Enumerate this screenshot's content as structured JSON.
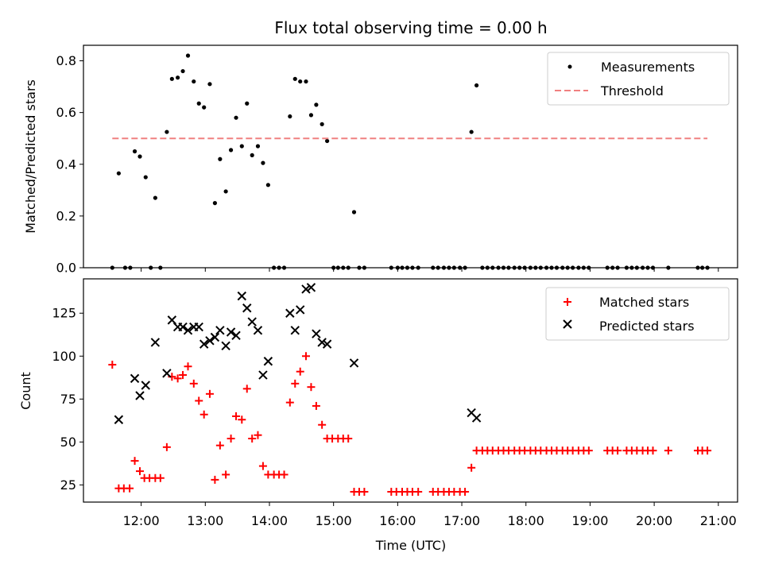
{
  "chart_data": [
    {
      "type": "scatter",
      "title": "Flux total observing time = 0.00 h",
      "xlabel": "",
      "ylabel": "Matched/Predicted stars",
      "xlim": [
        11.1,
        21.3
      ],
      "ylim": [
        0,
        0.86
      ],
      "yticks": [
        0.0,
        0.2,
        0.4,
        0.6,
        0.8
      ],
      "ytick_labels": [
        "0.0",
        "0.2",
        "0.4",
        "0.6",
        "0.8"
      ],
      "legend_position": "top-right",
      "series": [
        {
          "name": "Measurements",
          "marker": "dot",
          "color": "#000000",
          "points": [
            [
              11.55,
              0.0
            ],
            [
              11.65,
              0.365
            ],
            [
              11.75,
              0.0
            ],
            [
              11.83,
              0.0
            ],
            [
              11.9,
              0.45
            ],
            [
              11.98,
              0.43
            ],
            [
              12.07,
              0.35
            ],
            [
              12.15,
              0.0
            ],
            [
              12.22,
              0.27
            ],
            [
              12.3,
              0.0
            ],
            [
              12.4,
              0.525
            ],
            [
              12.48,
              0.73
            ],
            [
              12.57,
              0.735
            ],
            [
              12.65,
              0.76
            ],
            [
              12.73,
              0.82
            ],
            [
              12.82,
              0.72
            ],
            [
              12.9,
              0.635
            ],
            [
              12.98,
              0.62
            ],
            [
              13.07,
              0.71
            ],
            [
              13.15,
              0.25
            ],
            [
              13.23,
              0.42
            ],
            [
              13.32,
              0.295
            ],
            [
              13.4,
              0.455
            ],
            [
              13.48,
              0.58
            ],
            [
              13.57,
              0.47
            ],
            [
              13.65,
              0.635
            ],
            [
              13.73,
              0.435
            ],
            [
              13.82,
              0.47
            ],
            [
              13.9,
              0.405
            ],
            [
              13.98,
              0.32
            ],
            [
              14.07,
              0.0
            ],
            [
              14.15,
              0.0
            ],
            [
              14.23,
              0.0
            ],
            [
              14.32,
              0.585
            ],
            [
              14.4,
              0.73
            ],
            [
              14.48,
              0.72
            ],
            [
              14.57,
              0.72
            ],
            [
              14.65,
              0.59
            ],
            [
              14.73,
              0.63
            ],
            [
              14.82,
              0.555
            ],
            [
              14.9,
              0.49
            ],
            [
              15.0,
              0.0
            ],
            [
              15.07,
              0.0
            ],
            [
              15.15,
              0.0
            ],
            [
              15.23,
              0.0
            ],
            [
              15.32,
              0.215
            ],
            [
              15.4,
              0.0
            ],
            [
              15.48,
              0.0
            ],
            [
              15.9,
              0.0
            ],
            [
              16.0,
              0.0
            ],
            [
              16.07,
              0.0
            ],
            [
              16.15,
              0.0
            ],
            [
              16.23,
              0.0
            ],
            [
              16.32,
              0.0
            ],
            [
              16.55,
              0.0
            ],
            [
              16.63,
              0.0
            ],
            [
              16.72,
              0.0
            ],
            [
              16.8,
              0.0
            ],
            [
              16.88,
              0.0
            ],
            [
              16.97,
              0.0
            ],
            [
              17.05,
              0.0
            ],
            [
              17.15,
              0.525
            ],
            [
              17.23,
              0.705
            ],
            [
              17.32,
              0.0
            ],
            [
              17.4,
              0.0
            ],
            [
              17.48,
              0.0
            ],
            [
              17.57,
              0.0
            ],
            [
              17.65,
              0.0
            ],
            [
              17.73,
              0.0
            ],
            [
              17.82,
              0.0
            ],
            [
              17.9,
              0.0
            ],
            [
              17.98,
              0.0
            ],
            [
              18.07,
              0.0
            ],
            [
              18.15,
              0.0
            ],
            [
              18.23,
              0.0
            ],
            [
              18.32,
              0.0
            ],
            [
              18.4,
              0.0
            ],
            [
              18.48,
              0.0
            ],
            [
              18.57,
              0.0
            ],
            [
              18.65,
              0.0
            ],
            [
              18.73,
              0.0
            ],
            [
              18.82,
              0.0
            ],
            [
              18.9,
              0.0
            ],
            [
              18.98,
              0.0
            ],
            [
              19.27,
              0.0
            ],
            [
              19.35,
              0.0
            ],
            [
              19.43,
              0.0
            ],
            [
              19.57,
              0.0
            ],
            [
              19.65,
              0.0
            ],
            [
              19.73,
              0.0
            ],
            [
              19.82,
              0.0
            ],
            [
              19.9,
              0.0
            ],
            [
              19.98,
              0.0
            ],
            [
              20.22,
              0.0
            ],
            [
              20.68,
              0.0
            ],
            [
              20.75,
              0.0
            ],
            [
              20.83,
              0.0
            ]
          ]
        },
        {
          "name": "Threshold",
          "marker": "dashed-line",
          "color": "#f08080",
          "points": [
            [
              11.55,
              0.5
            ],
            [
              20.83,
              0.5
            ]
          ]
        }
      ]
    },
    {
      "type": "scatter",
      "title": "",
      "xlabel": "Time (UTC)",
      "ylabel": "Count",
      "xlim": [
        11.1,
        21.3
      ],
      "ylim": [
        15,
        145
      ],
      "yticks": [
        25,
        50,
        75,
        100,
        125
      ],
      "ytick_labels": [
        "25",
        "50",
        "75",
        "100",
        "125"
      ],
      "xticks": [
        12,
        13,
        14,
        15,
        16,
        17,
        18,
        19,
        20,
        21
      ],
      "xtick_labels": [
        "12:00",
        "13:00",
        "14:00",
        "15:00",
        "16:00",
        "17:00",
        "18:00",
        "19:00",
        "20:00",
        "21:00"
      ],
      "legend_position": "top-right",
      "series": [
        {
          "name": "Matched stars",
          "marker": "plus",
          "color": "#ff0000",
          "points": [
            [
              11.55,
              95
            ],
            [
              11.65,
              23
            ],
            [
              11.73,
              23
            ],
            [
              11.82,
              23
            ],
            [
              11.9,
              39
            ],
            [
              11.98,
              33
            ],
            [
              12.05,
              29
            ],
            [
              12.13,
              29
            ],
            [
              12.22,
              29
            ],
            [
              12.3,
              29
            ],
            [
              12.4,
              47
            ],
            [
              12.48,
              88
            ],
            [
              12.57,
              87
            ],
            [
              12.65,
              89
            ],
            [
              12.73,
              94
            ],
            [
              12.82,
              84
            ],
            [
              12.9,
              74
            ],
            [
              12.98,
              66
            ],
            [
              13.07,
              78
            ],
            [
              13.15,
              28
            ],
            [
              13.23,
              48
            ],
            [
              13.32,
              31
            ],
            [
              13.4,
              52
            ],
            [
              13.48,
              65
            ],
            [
              13.57,
              63
            ],
            [
              13.65,
              81
            ],
            [
              13.73,
              52
            ],
            [
              13.82,
              54
            ],
            [
              13.9,
              36
            ],
            [
              13.98,
              31
            ],
            [
              14.07,
              31
            ],
            [
              14.15,
              31
            ],
            [
              14.23,
              31
            ],
            [
              14.32,
              73
            ],
            [
              14.4,
              84
            ],
            [
              14.48,
              91
            ],
            [
              14.57,
              100
            ],
            [
              14.65,
              82
            ],
            [
              14.73,
              71
            ],
            [
              14.82,
              60
            ],
            [
              14.9,
              52
            ],
            [
              14.98,
              52
            ],
            [
              15.07,
              52
            ],
            [
              15.15,
              52
            ],
            [
              15.23,
              52
            ],
            [
              15.32,
              21
            ],
            [
              15.4,
              21
            ],
            [
              15.48,
              21
            ],
            [
              15.9,
              21
            ],
            [
              15.98,
              21
            ],
            [
              16.07,
              21
            ],
            [
              16.15,
              21
            ],
            [
              16.23,
              21
            ],
            [
              16.32,
              21
            ],
            [
              16.55,
              21
            ],
            [
              16.63,
              21
            ],
            [
              16.72,
              21
            ],
            [
              16.8,
              21
            ],
            [
              16.88,
              21
            ],
            [
              16.97,
              21
            ],
            [
              17.05,
              21
            ],
            [
              17.15,
              35
            ],
            [
              17.23,
              45
            ],
            [
              17.32,
              45
            ],
            [
              17.4,
              45
            ],
            [
              17.48,
              45
            ],
            [
              17.57,
              45
            ],
            [
              17.65,
              45
            ],
            [
              17.73,
              45
            ],
            [
              17.82,
              45
            ],
            [
              17.9,
              45
            ],
            [
              17.98,
              45
            ],
            [
              18.07,
              45
            ],
            [
              18.15,
              45
            ],
            [
              18.23,
              45
            ],
            [
              18.32,
              45
            ],
            [
              18.4,
              45
            ],
            [
              18.48,
              45
            ],
            [
              18.57,
              45
            ],
            [
              18.65,
              45
            ],
            [
              18.73,
              45
            ],
            [
              18.82,
              45
            ],
            [
              18.9,
              45
            ],
            [
              18.98,
              45
            ],
            [
              19.27,
              45
            ],
            [
              19.35,
              45
            ],
            [
              19.43,
              45
            ],
            [
              19.57,
              45
            ],
            [
              19.65,
              45
            ],
            [
              19.73,
              45
            ],
            [
              19.82,
              45
            ],
            [
              19.9,
              45
            ],
            [
              19.98,
              45
            ],
            [
              20.22,
              45
            ],
            [
              20.68,
              45
            ],
            [
              20.75,
              45
            ],
            [
              20.83,
              45
            ]
          ]
        },
        {
          "name": "Predicted stars",
          "marker": "x",
          "color": "#000000",
          "points": [
            [
              11.65,
              63
            ],
            [
              11.9,
              87
            ],
            [
              11.98,
              77
            ],
            [
              12.07,
              83
            ],
            [
              12.22,
              108
            ],
            [
              12.4,
              90
            ],
            [
              12.48,
              121
            ],
            [
              12.57,
              117
            ],
            [
              12.65,
              117
            ],
            [
              12.73,
              115
            ],
            [
              12.82,
              117
            ],
            [
              12.9,
              117
            ],
            [
              12.98,
              107
            ],
            [
              13.07,
              109
            ],
            [
              13.15,
              111
            ],
            [
              13.23,
              115
            ],
            [
              13.32,
              106
            ],
            [
              13.4,
              114
            ],
            [
              13.48,
              112
            ],
            [
              13.57,
              135
            ],
            [
              13.65,
              128
            ],
            [
              13.73,
              120
            ],
            [
              13.82,
              115
            ],
            [
              13.9,
              89
            ],
            [
              13.98,
              97
            ],
            [
              14.32,
              125
            ],
            [
              14.4,
              115
            ],
            [
              14.48,
              127
            ],
            [
              14.57,
              139
            ],
            [
              14.65,
              140
            ],
            [
              14.73,
              113
            ],
            [
              14.82,
              108
            ],
            [
              14.9,
              107
            ],
            [
              15.32,
              96
            ],
            [
              17.15,
              67
            ],
            [
              17.23,
              64
            ]
          ]
        }
      ]
    }
  ]
}
